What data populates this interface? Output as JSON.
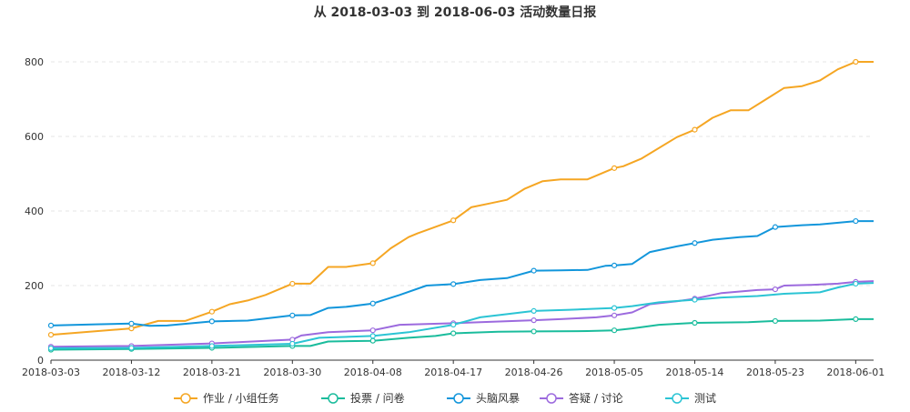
{
  "chart_data": {
    "type": "line",
    "title": "从 2018-03-03 到 2018-06-03 活动数量日报",
    "xlabel": "",
    "ylabel": "",
    "ylim": [
      0,
      800
    ],
    "yticks": [
      0,
      200,
      400,
      600,
      800
    ],
    "x_start": "2018-03-03",
    "x_end": "2018-06-03",
    "x_tick_labels": [
      "2018-03-03",
      "2018-03-12",
      "2018-03-21",
      "2018-03-30",
      "2018-04-08",
      "2018-04-17",
      "2018-04-26",
      "2018-05-05",
      "2018-05-14",
      "2018-05-23",
      "2018-06-01"
    ],
    "x_tick_days": [
      0,
      9,
      18,
      27,
      36,
      45,
      54,
      63,
      72,
      81,
      90
    ],
    "grid": true,
    "legend_position": "bottom",
    "series": [
      {
        "name": "作业 / 小组任务",
        "color": "#f5a623",
        "days": [
          0,
          9,
          12,
          15,
          18,
          20,
          22,
          24,
          27,
          29,
          31,
          33,
          36,
          38,
          40,
          41,
          45,
          47,
          49,
          51,
          53,
          55,
          57,
          60,
          63,
          64,
          66,
          70,
          72,
          74,
          76,
          78,
          80,
          82,
          84,
          86,
          88,
          90,
          92
        ],
        "values": [
          68,
          85,
          105,
          105,
          130,
          150,
          160,
          175,
          205,
          205,
          250,
          250,
          260,
          300,
          330,
          340,
          375,
          410,
          420,
          430,
          460,
          480,
          485,
          485,
          515,
          520,
          540,
          598,
          618,
          650,
          670,
          670,
          700,
          730,
          735,
          750,
          780,
          800,
          800
        ]
      },
      {
        "name": "投票 / 问卷",
        "color": "#1abc9c",
        "days": [
          0,
          9,
          18,
          27,
          29,
          31,
          36,
          40,
          43,
          45,
          50,
          54,
          60,
          63,
          65,
          68,
          72,
          78,
          81,
          86,
          90,
          92
        ],
        "values": [
          28,
          30,
          33,
          38,
          38,
          50,
          52,
          60,
          65,
          72,
          76,
          77,
          78,
          80,
          85,
          95,
          100,
          102,
          105,
          106,
          110,
          110
        ]
      },
      {
        "name": "头脑风暴",
        "color": "#1296db",
        "days": [
          0,
          5,
          9,
          11,
          13,
          18,
          22,
          27,
          29,
          31,
          33,
          36,
          39,
          42,
          45,
          48,
          51,
          54,
          57,
          60,
          62,
          63,
          65,
          67,
          70,
          72,
          74,
          77,
          79,
          81,
          84,
          86,
          90,
          92
        ],
        "values": [
          93,
          96,
          98,
          92,
          93,
          104,
          106,
          120,
          121,
          140,
          143,
          152,
          175,
          200,
          204,
          215,
          220,
          240,
          241,
          242,
          253,
          254,
          258,
          290,
          305,
          314,
          323,
          330,
          333,
          357,
          362,
          364,
          373,
          373
        ],
        "dense": true
      },
      {
        "name": "答疑 / 讨论",
        "color": "#9c6ade",
        "days": [
          0,
          9,
          18,
          27,
          28,
          31,
          36,
          39,
          45,
          48,
          54,
          57,
          61,
          63,
          65,
          67,
          70,
          72,
          75,
          79,
          81,
          82,
          85,
          88,
          90,
          92
        ],
        "values": [
          36,
          38,
          45,
          55,
          66,
          75,
          80,
          95,
          99,
          102,
          107,
          110,
          115,
          120,
          128,
          150,
          158,
          165,
          180,
          188,
          190,
          200,
          202,
          205,
          210,
          212
        ]
      },
      {
        "name": "测试",
        "color": "#2bc4d4",
        "days": [
          0,
          9,
          18,
          27,
          30,
          36,
          40,
          45,
          48,
          54,
          58,
          63,
          65,
          68,
          72,
          75,
          79,
          82,
          86,
          88,
          90,
          92
        ],
        "values": [
          32,
          33,
          38,
          44,
          60,
          65,
          75,
          95,
          115,
          132,
          135,
          140,
          145,
          155,
          162,
          168,
          172,
          178,
          182,
          195,
          205,
          207
        ]
      }
    ]
  }
}
